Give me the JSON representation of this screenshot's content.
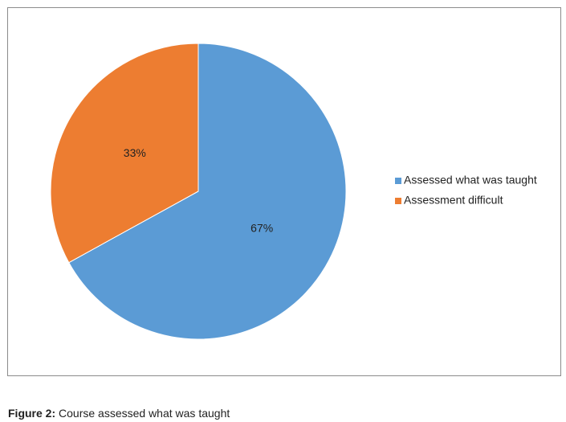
{
  "chart_data": {
    "type": "pie",
    "categories": [
      "Assessed what was taught",
      "Assessment difficult"
    ],
    "values": [
      67,
      33
    ],
    "value_labels": [
      "67%",
      "33%"
    ],
    "colors": [
      "#5b9bd5",
      "#ed7d31"
    ],
    "legend": "right"
  },
  "figure_caption": {
    "label": "Figure 2:",
    "text": "Course assessed what was taught"
  }
}
